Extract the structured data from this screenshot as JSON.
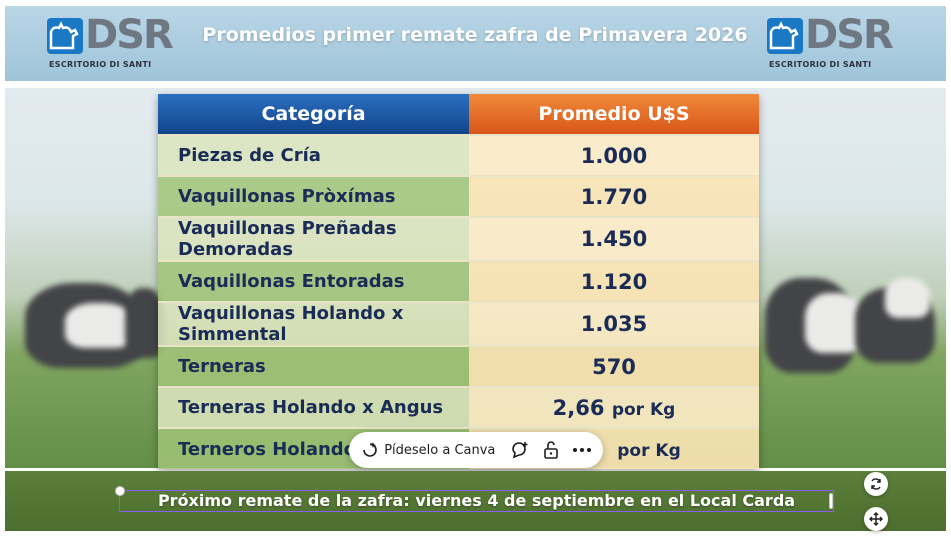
{
  "header": {
    "title": "Promedios primer remate zafra de Primavera 2026",
    "logo_left": {
      "letters": "DSR",
      "subtitle": "ESCRITORIO DI SANTI"
    },
    "logo_right": {
      "letters": "DSR",
      "subtitle": "ESCRITORIO DI SANTI"
    }
  },
  "table": {
    "headers": [
      "Categoría",
      "Promedio U$S"
    ],
    "rows": [
      {
        "category": "Piezas de Cría",
        "value": "1.000",
        "unit": ""
      },
      {
        "category": "Vaquillonas Pròxímas",
        "value": "1.770",
        "unit": ""
      },
      {
        "category": "Vaquillonas Preñadas Demoradas",
        "value": "1.450",
        "unit": ""
      },
      {
        "category": "Vaquillonas Entoradas",
        "value": "1.120",
        "unit": ""
      },
      {
        "category": "Vaquillonas Holando x Simmental",
        "value": "1.035",
        "unit": ""
      },
      {
        "category": "Terneras",
        "value": "570",
        "unit": ""
      },
      {
        "category": "Terneras Holando x Angus",
        "value": "2,66",
        "unit": "por Kg"
      },
      {
        "category": "Terneros Holando",
        "value": "",
        "unit": "por Kg"
      }
    ]
  },
  "canva_toolbar": {
    "ask_label": "Pídeselo a Canva",
    "icons": [
      "sparkle-icon",
      "comment-add-icon",
      "unlock-icon",
      "more-icon"
    ]
  },
  "footer": {
    "text": "Próximo remate de la zafra: viernes 4 de septiembre en el Local Carda"
  },
  "colors": {
    "header_bg": "#9fc4d9",
    "table_header_left": "#12448c",
    "table_header_right": "#d9561a",
    "table_text": "#1a2c55",
    "footer_bg": "#4c6e2e",
    "selection": "#8b5cf6",
    "logo_blue": "#1b78c4"
  }
}
